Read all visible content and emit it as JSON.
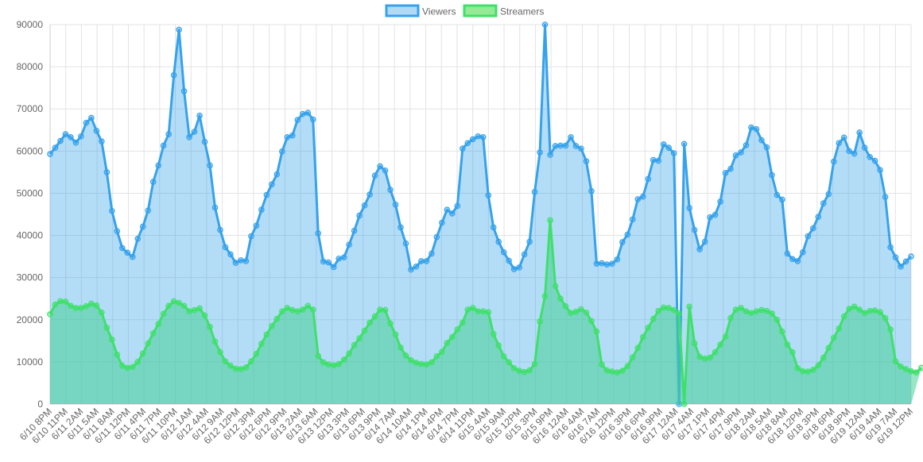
{
  "chart_data": {
    "type": "area",
    "ylim": [
      0,
      90000
    ],
    "yticks": [
      0,
      10000,
      20000,
      30000,
      40000,
      50000,
      60000,
      70000,
      80000,
      90000
    ],
    "grid": true,
    "legend_position": "top-center",
    "legend": [
      {
        "label": "Viewers",
        "color": "#36a2eb",
        "fill": "#b2daf5"
      },
      {
        "label": "Streamers",
        "color": "#3fe06a",
        "fill": "#75d3c1"
      }
    ],
    "x_tick_labels": [
      "6/10 8PM",
      "6/10 11PM",
      "6/11 2AM",
      "6/11 5AM",
      "6/11 8AM",
      "6/11 12PM",
      "6/11 4PM",
      "6/11 7PM",
      "6/11 10PM",
      "6/12 1AM",
      "6/12 4AM",
      "6/12 9AM",
      "6/12 12PM",
      "6/12 3PM",
      "6/12 6PM",
      "6/12 9PM",
      "6/13 2AM",
      "6/13 6AM",
      "6/13 12PM",
      "6/13 3PM",
      "6/13 6PM",
      "6/13 9PM",
      "6/14 7AM",
      "6/14 10AM",
      "6/14 1PM",
      "6/14 4PM",
      "6/14 7PM",
      "6/14 11PM",
      "6/15 4AM",
      "6/15 9AM",
      "6/15 12PM",
      "6/15 3PM",
      "6/15 9PM",
      "6/16 12AM",
      "6/16 4AM",
      "6/16 7AM",
      "6/16 12PM",
      "6/16 3PM",
      "6/16 6PM",
      "6/16 9PM",
      "6/17 12AM",
      "6/17 4AM",
      "6/17 1PM",
      "6/17 4PM",
      "6/17 9PM",
      "6/18 2AM",
      "6/18 5AM",
      "6/18 8AM",
      "6/18 12PM",
      "6/18 3PM",
      "6/18 6PM",
      "6/18 9PM",
      "6/19 12AM",
      "6/19 4AM",
      "6/19 7AM",
      "6/19 12PM"
    ],
    "series": [
      {
        "name": "Viewers",
        "values": [
          59300,
          60800,
          62400,
          64000,
          63300,
          62000,
          63500,
          66700,
          67900,
          64800,
          62300,
          55000,
          45800,
          41000,
          37000,
          35900,
          34900,
          39200,
          42100,
          45900,
          52700,
          56600,
          61300,
          64000,
          78000,
          88800,
          74200,
          63300,
          64600,
          68400,
          62200,
          56600,
          46600,
          41300,
          37200,
          35500,
          33500,
          34100,
          33900,
          39800,
          42300,
          46100,
          49600,
          52100,
          54500,
          59900,
          63300,
          63700,
          67400,
          68800,
          69100,
          67500,
          40500,
          33800,
          33600,
          32500,
          34500,
          34800,
          37800,
          41100,
          44700,
          47100,
          49700,
          54200,
          56400,
          55400,
          50800,
          47300,
          41900,
          38100,
          31900,
          32600,
          33900,
          33900,
          35700,
          39600,
          43000,
          46100,
          45200,
          47000,
          60600,
          61900,
          62800,
          63500,
          63300,
          49500,
          41900,
          38500,
          36000,
          34000,
          32000,
          32400,
          35500,
          38500,
          50300,
          59700,
          90000,
          59100,
          61200,
          61300,
          61300,
          63300,
          61200,
          60600,
          57600,
          50500,
          33300,
          33400,
          33100,
          33300,
          34300,
          38400,
          40200,
          43800,
          48600,
          49200,
          53400,
          57900,
          57700,
          61600,
          60800,
          59500,
          0,
          61700,
          46500,
          41300,
          36700,
          38500,
          44300,
          44900,
          48000,
          54800,
          55800,
          59000,
          59700,
          61400,
          65600,
          65200,
          62600,
          60900,
          54300,
          49600,
          48500,
          35700,
          34400,
          33900,
          36000,
          39800,
          41700,
          44400,
          47600,
          49800,
          57500,
          61900,
          63200,
          60000,
          59400,
          64400,
          60800,
          58600,
          57700,
          55500,
          49100,
          37200,
          34800,
          32600,
          33800,
          35000
        ]
      },
      {
        "name": "Streamers",
        "values": [
          21300,
          23600,
          24400,
          24300,
          23300,
          22800,
          22800,
          23200,
          23800,
          23400,
          21700,
          18100,
          15300,
          11700,
          9100,
          8600,
          8800,
          10000,
          12000,
          14400,
          16800,
          19000,
          21400,
          23300,
          24400,
          24000,
          23300,
          22000,
          22300,
          22700,
          21000,
          18300,
          14800,
          12300,
          10100,
          9100,
          8400,
          8300,
          8700,
          10100,
          11900,
          14300,
          16500,
          18500,
          20200,
          22000,
          22800,
          22300,
          22000,
          22400,
          23300,
          22400,
          11400,
          9900,
          9400,
          9200,
          9500,
          10500,
          12000,
          14000,
          15600,
          17400,
          19300,
          20800,
          22400,
          22300,
          19100,
          16500,
          13400,
          11500,
          10400,
          9800,
          9500,
          9400,
          9900,
          11300,
          12400,
          14500,
          15900,
          17700,
          19300,
          22400,
          22800,
          22000,
          22000,
          21800,
          16600,
          13900,
          11300,
          9900,
          8500,
          7900,
          7600,
          8000,
          9500,
          19600,
          25600,
          43600,
          28000,
          25000,
          23200,
          21600,
          21900,
          22500,
          21700,
          19700,
          17200,
          9400,
          8000,
          7700,
          7500,
          7900,
          9000,
          11100,
          13300,
          15900,
          18100,
          20200,
          22100,
          22900,
          22800,
          22300,
          21500,
          0,
          23100,
          14400,
          11200,
          10800,
          11000,
          12300,
          14100,
          16000,
          20400,
          22400,
          22800,
          22000,
          21600,
          22000,
          22300,
          22100,
          21500,
          20000,
          17200,
          14100,
          12300,
          8500,
          7800,
          7700,
          8100,
          9200,
          11000,
          13300,
          15700,
          17900,
          20800,
          22600,
          23100,
          22400,
          21600,
          22100,
          22200,
          21800,
          20400,
          17700,
          10100,
          8900,
          8300,
          7800,
          7500,
          8600
        ]
      }
    ]
  }
}
